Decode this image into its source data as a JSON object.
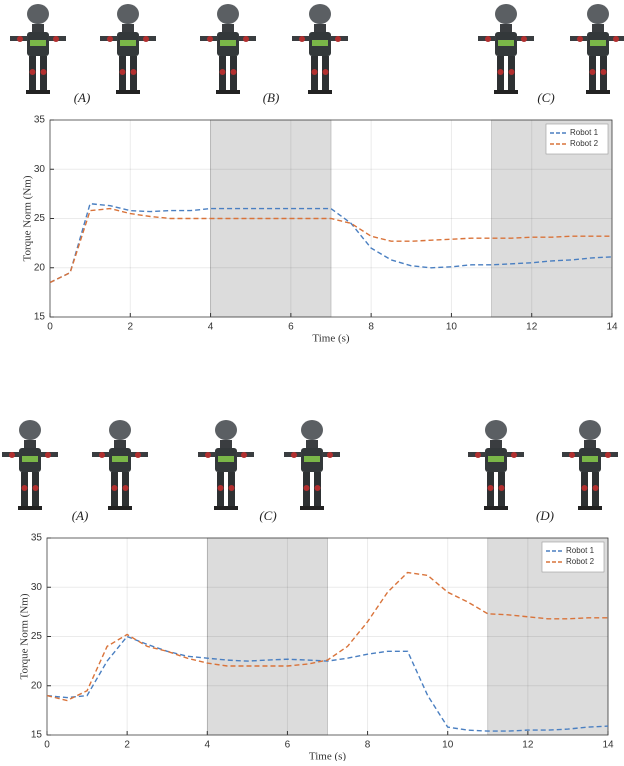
{
  "image_labels": {
    "top": [
      "(A)",
      "(B)",
      "(C)"
    ],
    "bottom": [
      "(A)",
      "(C)",
      "(D)"
    ]
  },
  "chart_data": [
    {
      "type": "line",
      "xlabel": "Time (s)",
      "ylabel": "Torque Norm (Nm)",
      "x": [
        0,
        0.5,
        1,
        1.5,
        2,
        2.5,
        3,
        3.5,
        4,
        4.5,
        5,
        5.5,
        6,
        6.5,
        7,
        7.5,
        8,
        8.5,
        9,
        9.5,
        10,
        10.5,
        11,
        11.5,
        12,
        12.5,
        13,
        13.5,
        14
      ],
      "series": [
        {
          "name": "Robot 1",
          "color": "#4a7fc1",
          "values": [
            18.5,
            19.5,
            26.5,
            26.3,
            25.8,
            25.7,
            25.8,
            25.8,
            26,
            26,
            26,
            26,
            26,
            26,
            26,
            24.5,
            22,
            20.8,
            20.2,
            20,
            20.1,
            20.3,
            20.3,
            20.4,
            20.5,
            20.7,
            20.8,
            21,
            21.1
          ]
        },
        {
          "name": "Robot 2",
          "color": "#d9733a",
          "values": [
            18.5,
            19.5,
            25.8,
            26,
            25.5,
            25.2,
            25,
            25,
            25,
            25,
            25,
            25,
            25,
            25,
            25,
            24.5,
            23.2,
            22.7,
            22.7,
            22.8,
            22.9,
            23,
            23,
            23,
            23.1,
            23.1,
            23.2,
            23.2,
            23.2
          ]
        }
      ],
      "shaded_regions": [
        [
          4,
          7
        ],
        [
          11,
          14
        ]
      ],
      "xlim": [
        0,
        14
      ],
      "xticks": [
        0,
        2,
        4,
        6,
        8,
        10,
        12,
        14
      ],
      "ylim": [
        15,
        35
      ],
      "yticks": [
        15,
        20,
        25,
        30,
        35
      ],
      "grid": true,
      "legend": "top-right"
    },
    {
      "type": "line",
      "xlabel": "Time (s)",
      "ylabel": "Torque Norm (Nm)",
      "x": [
        0,
        0.5,
        1,
        1.5,
        2,
        2.5,
        3,
        3.5,
        4,
        4.5,
        5,
        5.5,
        6,
        6.5,
        7,
        7.5,
        8,
        8.5,
        9,
        9.5,
        10,
        10.5,
        11,
        11.5,
        12,
        12.5,
        13,
        13.5,
        14
      ],
      "series": [
        {
          "name": "Robot 1",
          "color": "#4a7fc1",
          "values": [
            19,
            18.8,
            19,
            22.5,
            25,
            24.2,
            23.5,
            23,
            22.8,
            22.6,
            22.5,
            22.6,
            22.7,
            22.6,
            22.5,
            22.8,
            23.2,
            23.5,
            23.5,
            19,
            15.8,
            15.5,
            15.4,
            15.4,
            15.5,
            15.5,
            15.6,
            15.8,
            15.9
          ]
        },
        {
          "name": "Robot 2",
          "color": "#d9733a",
          "values": [
            19,
            18.5,
            19.5,
            24,
            25.2,
            24,
            23.5,
            22.8,
            22.3,
            22,
            22,
            22,
            22,
            22.2,
            22.6,
            24,
            26.5,
            29.5,
            31.5,
            31.2,
            29.5,
            28.5,
            27.3,
            27.2,
            27,
            26.8,
            26.8,
            26.9,
            26.9
          ]
        }
      ],
      "shaded_regions": [
        [
          4,
          7
        ],
        [
          11,
          14
        ]
      ],
      "xlim": [
        0,
        14
      ],
      "xticks": [
        0,
        2,
        4,
        6,
        8,
        10,
        12,
        14
      ],
      "ylim": [
        15,
        35
      ],
      "yticks": [
        15,
        20,
        25,
        30,
        35
      ],
      "grid": true,
      "legend": "top-right"
    }
  ]
}
